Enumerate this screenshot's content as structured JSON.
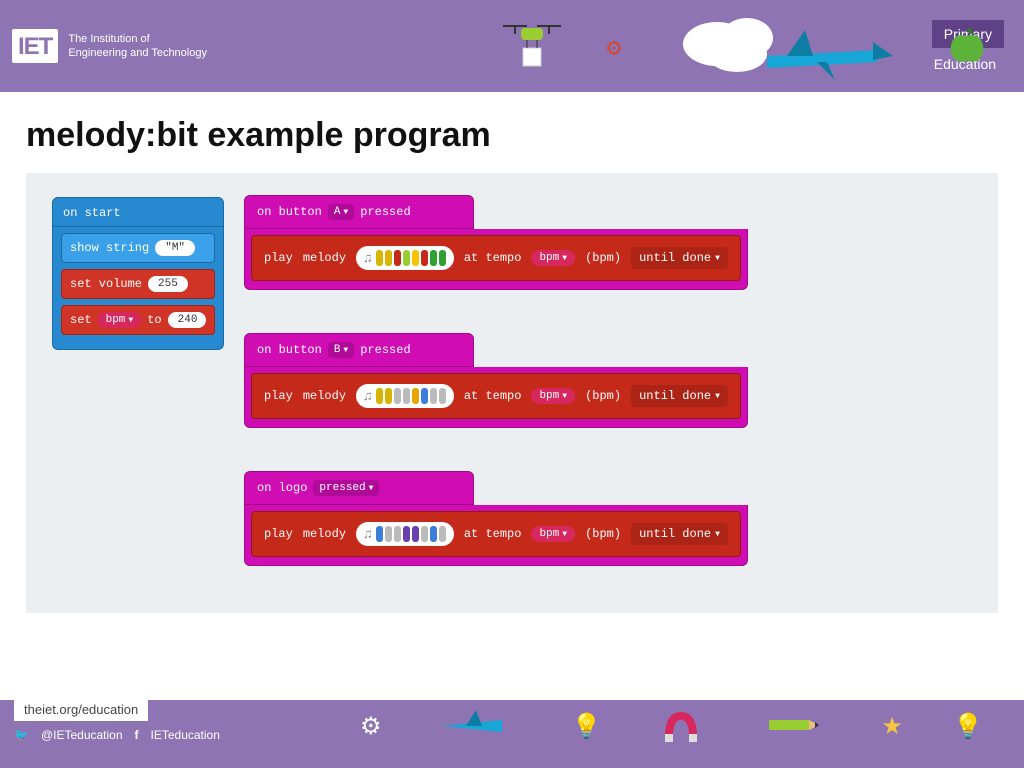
{
  "header": {
    "brand_mark": "IET",
    "brand_line1": "The Institution of",
    "brand_line2": "Engineering and Technology",
    "primary_label": "Primary",
    "education_label": "Education",
    "bg_color": "#8e74b3",
    "primary_bg": "#5e4186"
  },
  "title": "melody:bit example program",
  "workspace_bg": "#eceff1",
  "onstart": {
    "hat": "on start",
    "show_string_label": "show string",
    "show_string_value": "\"M\"",
    "set_volume_label": "set volume",
    "set_volume_value": "255",
    "set_var_label": "set",
    "set_var_name": "bpm",
    "set_var_to": "to",
    "set_var_value": "240",
    "hat_color": "#278ad0",
    "inner_blue": "#3aa0e8",
    "inner_red": "#d03427"
  },
  "stacks": [
    {
      "hat_prefix": "on button",
      "hat_option": "A",
      "hat_suffix": "pressed",
      "melody_colors": [
        "#d6b400",
        "#d6b400",
        "#c4291a",
        "#9acd32",
        "#f8c300",
        "#c4291a",
        "#30a030",
        "#30a030"
      ]
    },
    {
      "hat_prefix": "on button",
      "hat_option": "B",
      "hat_suffix": "pressed",
      "melody_colors": [
        "#d6b400",
        "#d6b400",
        "#bbbbbb",
        "#bbbbbb",
        "#e8a400",
        "#3b7dd8",
        "#bbbbbb",
        "#bbbbbb"
      ]
    },
    {
      "hat_prefix": "on logo",
      "hat_option": "pressed",
      "hat_suffix": "",
      "melody_colors": [
        "#3b7dd8",
        "#bbbbbb",
        "#bbbbbb",
        "#6a3fb0",
        "#6a3fb0",
        "#bbbbbb",
        "#3b7dd8",
        "#bbbbbb"
      ]
    }
  ],
  "play": {
    "play_label": "play",
    "melody_label": "melody",
    "at_tempo": "at tempo",
    "bpm_var": "bpm",
    "bpm_suffix": "(bpm)",
    "until_done": "until done",
    "hat_color": "#cf0db3",
    "block_color": "#c4291a",
    "var_pill_color": "#d6285e"
  },
  "footer": {
    "url": "theiet.org/education",
    "twitter": "@IETeducation",
    "facebook": "IETeducation"
  }
}
